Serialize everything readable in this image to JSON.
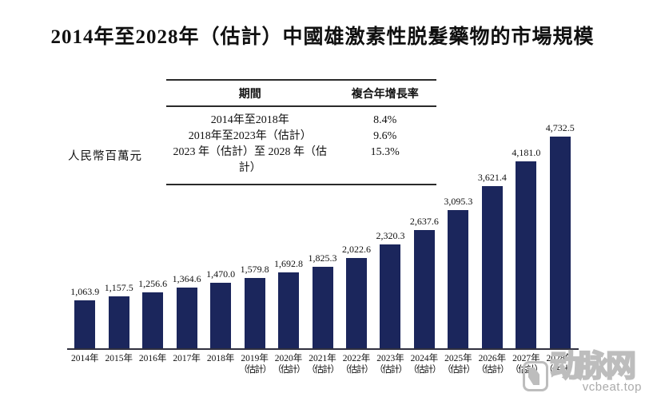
{
  "title": "2014年至2028年（估計）中國雄激素性脱髮藥物的市場規模",
  "y_axis_label": "人民幣百萬元",
  "cagr_table": {
    "headers": {
      "period": "期間",
      "cagr": "複合年增長率"
    },
    "rows": [
      {
        "period": "2014年至2018年",
        "cagr": "8.4%"
      },
      {
        "period": "2018年至2023年（估計）",
        "cagr": "9.6%"
      },
      {
        "period": "2023 年（估計）至 2028 年（估計）",
        "cagr": "15.3%"
      }
    ]
  },
  "watermark": {
    "brand": "动脉网",
    "domain": "vcbeat.top"
  },
  "colors": {
    "bar": "#1b265c",
    "axis": "#30303f",
    "text": "#111111",
    "watermark": "#bdbdbd"
  },
  "chart_data": {
    "type": "bar",
    "title": "2014年至2028年（估計）中國雄激素性脱髮藥物的市場規模",
    "xlabel": "",
    "ylabel": "人民幣百萬元",
    "unit": "人民幣百萬元 (RMB million)",
    "categories": [
      "2014年",
      "2015年",
      "2016年",
      "2017年",
      "2018年",
      "2019年（估計）",
      "2020年（估計）",
      "2021年（估計）",
      "2022年（估計）",
      "2023年（估計）",
      "2024年（估計）",
      "2025年（估計）",
      "2026年（估計）",
      "2027年（估計）",
      "2028年（估計）"
    ],
    "x_tick_line1": [
      "2014年",
      "2015年",
      "2016年",
      "2017年",
      "2018年",
      "2019年",
      "2020年",
      "2021年",
      "2022年",
      "2023年",
      "2024年",
      "2025年",
      "2026年",
      "2027年",
      "2028年"
    ],
    "x_tick_line2": [
      "",
      "",
      "",
      "",
      "",
      "（估計）",
      "（估計）",
      "（估計）",
      "（估計）",
      "（估計）",
      "（估計）",
      "（估計）",
      "（估計）",
      "（估計）",
      "（估計）"
    ],
    "values": [
      1063.9,
      1157.5,
      1256.6,
      1364.6,
      1470.0,
      1579.8,
      1692.8,
      1825.3,
      2022.6,
      2320.3,
      2637.6,
      3095.3,
      3621.4,
      4181.0,
      4732.5
    ],
    "value_labels": [
      "1,063.9",
      "1,157.5",
      "1,256.6",
      "1,364.6",
      "1,470.0",
      "1,579.8",
      "1,692.8",
      "1,825.3",
      "2,022.6",
      "2,320.3",
      "2,637.6",
      "3,095.3",
      "3,621.4",
      "4,181.0",
      "4,732.5"
    ],
    "ylim": [
      0,
      4800
    ],
    "grid": false,
    "legend": "none",
    "bar_color": "#1b265c",
    "annotations": {
      "cagr": [
        {
          "period": "2014年至2018年",
          "value_pct": 8.4
        },
        {
          "period": "2018年至2023年（估計）",
          "value_pct": 9.6
        },
        {
          "period": "2023年（估計）至2028年（估計）",
          "value_pct": 15.3
        }
      ]
    }
  }
}
